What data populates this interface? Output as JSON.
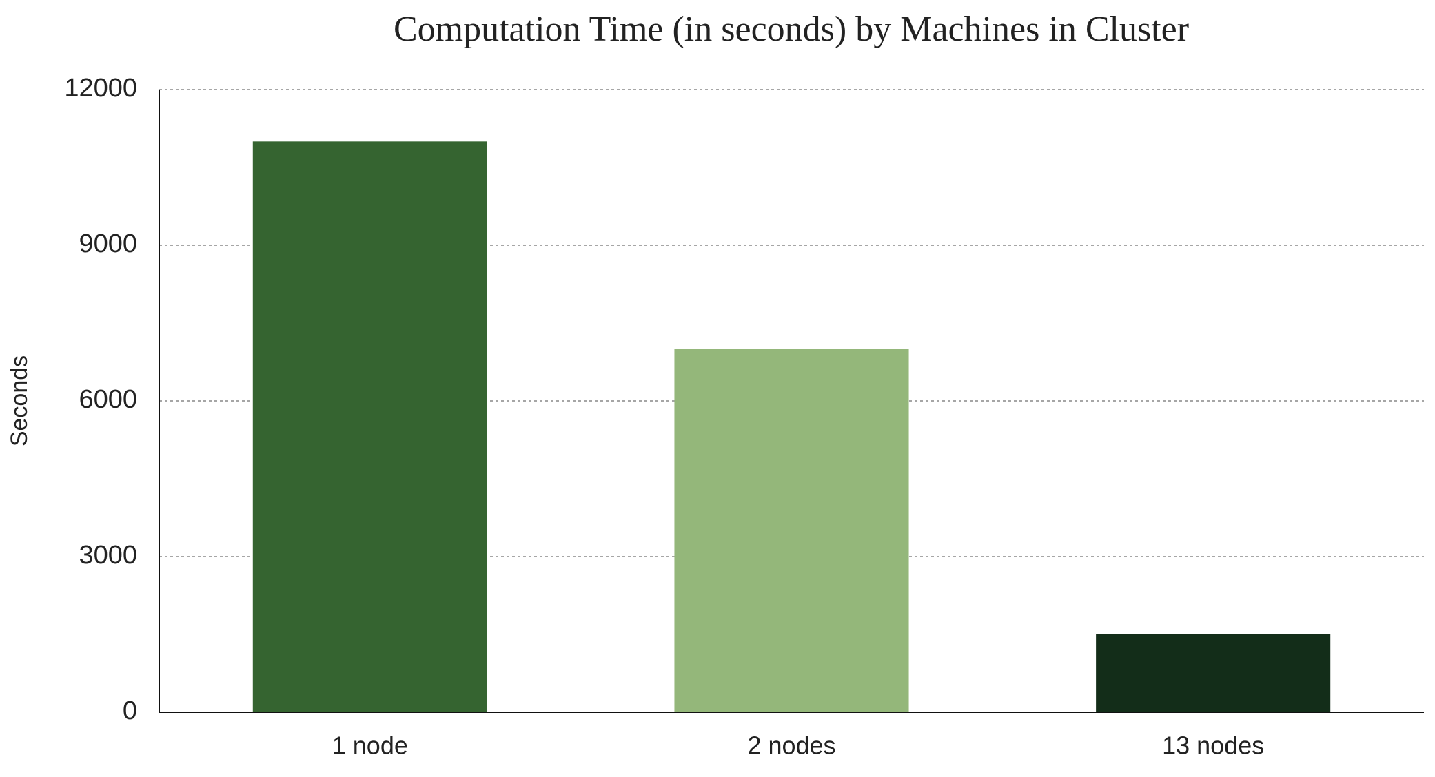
{
  "chart_data": {
    "type": "bar",
    "title": "Computation Time (in seconds) by Machines in Cluster",
    "ylabel": "Seconds",
    "categories": [
      "1 node",
      "2 nodes",
      "13 nodes"
    ],
    "values": [
      11000,
      7000,
      1500
    ],
    "colors": [
      "#356430",
      "#94b77a",
      "#132d19"
    ],
    "ylim": [
      0,
      12000
    ],
    "yticks": [
      0,
      3000,
      6000,
      9000,
      12000
    ],
    "grid": true
  }
}
